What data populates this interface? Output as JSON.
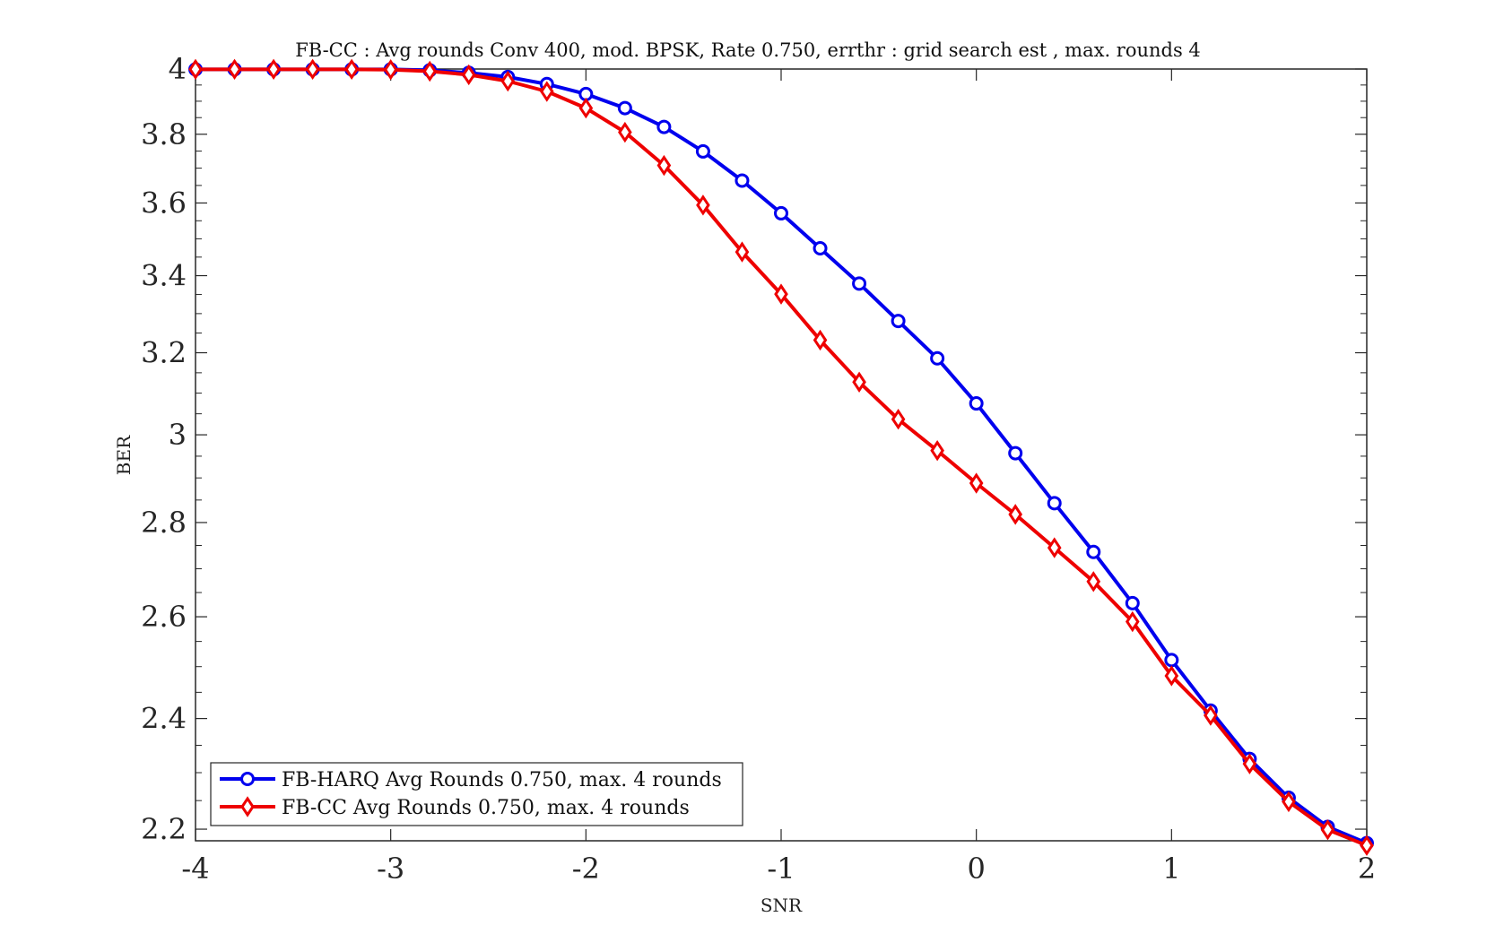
{
  "chart_data": {
    "type": "line",
    "title": "FB-CC : Avg rounds Conv 400, mod. BPSK, Rate 0.750, errthr : grid search est , max. rounds 4",
    "xlabel": "SNR",
    "ylabel": "BER",
    "xlim": [
      -4,
      2
    ],
    "ylim": [
      2.18,
      4
    ],
    "yscale": "log",
    "x_ticks": [
      -4,
      -3,
      -2,
      -1,
      0,
      1,
      2
    ],
    "x_tick_labels": [
      "-4",
      "-3",
      "-2",
      "-1",
      "0",
      "1",
      "2"
    ],
    "y_ticks": [
      2.2,
      2.4,
      2.6,
      2.8,
      3,
      3.2,
      3.4,
      3.6,
      3.8,
      4
    ],
    "y_tick_labels": [
      "2.2",
      "2.4",
      "2.6",
      "2.8",
      "3",
      "3.2",
      "3.4",
      "3.6",
      "3.8",
      "4"
    ],
    "grid": false,
    "legend_position": "bottom-left",
    "x": [
      -4,
      -3.8,
      -3.6,
      -3.4,
      -3.2,
      -3,
      -2.8,
      -2.6,
      -2.4,
      -2.2,
      -2,
      -1.8,
      -1.6,
      -1.4,
      -1.2,
      -1,
      -0.8,
      -0.6,
      -0.4,
      -0.2,
      0,
      0.2,
      0.4,
      0.6,
      0.8,
      1,
      1.2,
      1.4,
      1.6,
      1.8,
      2
    ],
    "series": [
      {
        "name": "FB-HARQ Avg Rounds 0.750, max. 4 rounds",
        "color": "#0000ee",
        "marker": "circle",
        "values": [
          3.999,
          3.999,
          3.999,
          3.999,
          3.999,
          3.999,
          3.996,
          3.988,
          3.975,
          3.953,
          3.922,
          3.879,
          3.822,
          3.749,
          3.664,
          3.571,
          3.474,
          3.379,
          3.281,
          3.186,
          3.075,
          2.957,
          2.843,
          2.736,
          2.628,
          2.513,
          2.415,
          2.325,
          2.255,
          2.204,
          2.176
        ]
      },
      {
        "name": "FB-CC Avg Rounds 0.750, max. 4 rounds",
        "color": "#ee0000",
        "marker": "diamond",
        "values": [
          3.999,
          3.999,
          3.999,
          3.999,
          3.999,
          3.998,
          3.993,
          3.982,
          3.962,
          3.93,
          3.879,
          3.806,
          3.708,
          3.594,
          3.464,
          3.351,
          3.232,
          3.127,
          3.037,
          2.963,
          2.888,
          2.818,
          2.745,
          2.673,
          2.59,
          2.482,
          2.406,
          2.316,
          2.248,
          2.199,
          2.172
        ]
      }
    ]
  }
}
